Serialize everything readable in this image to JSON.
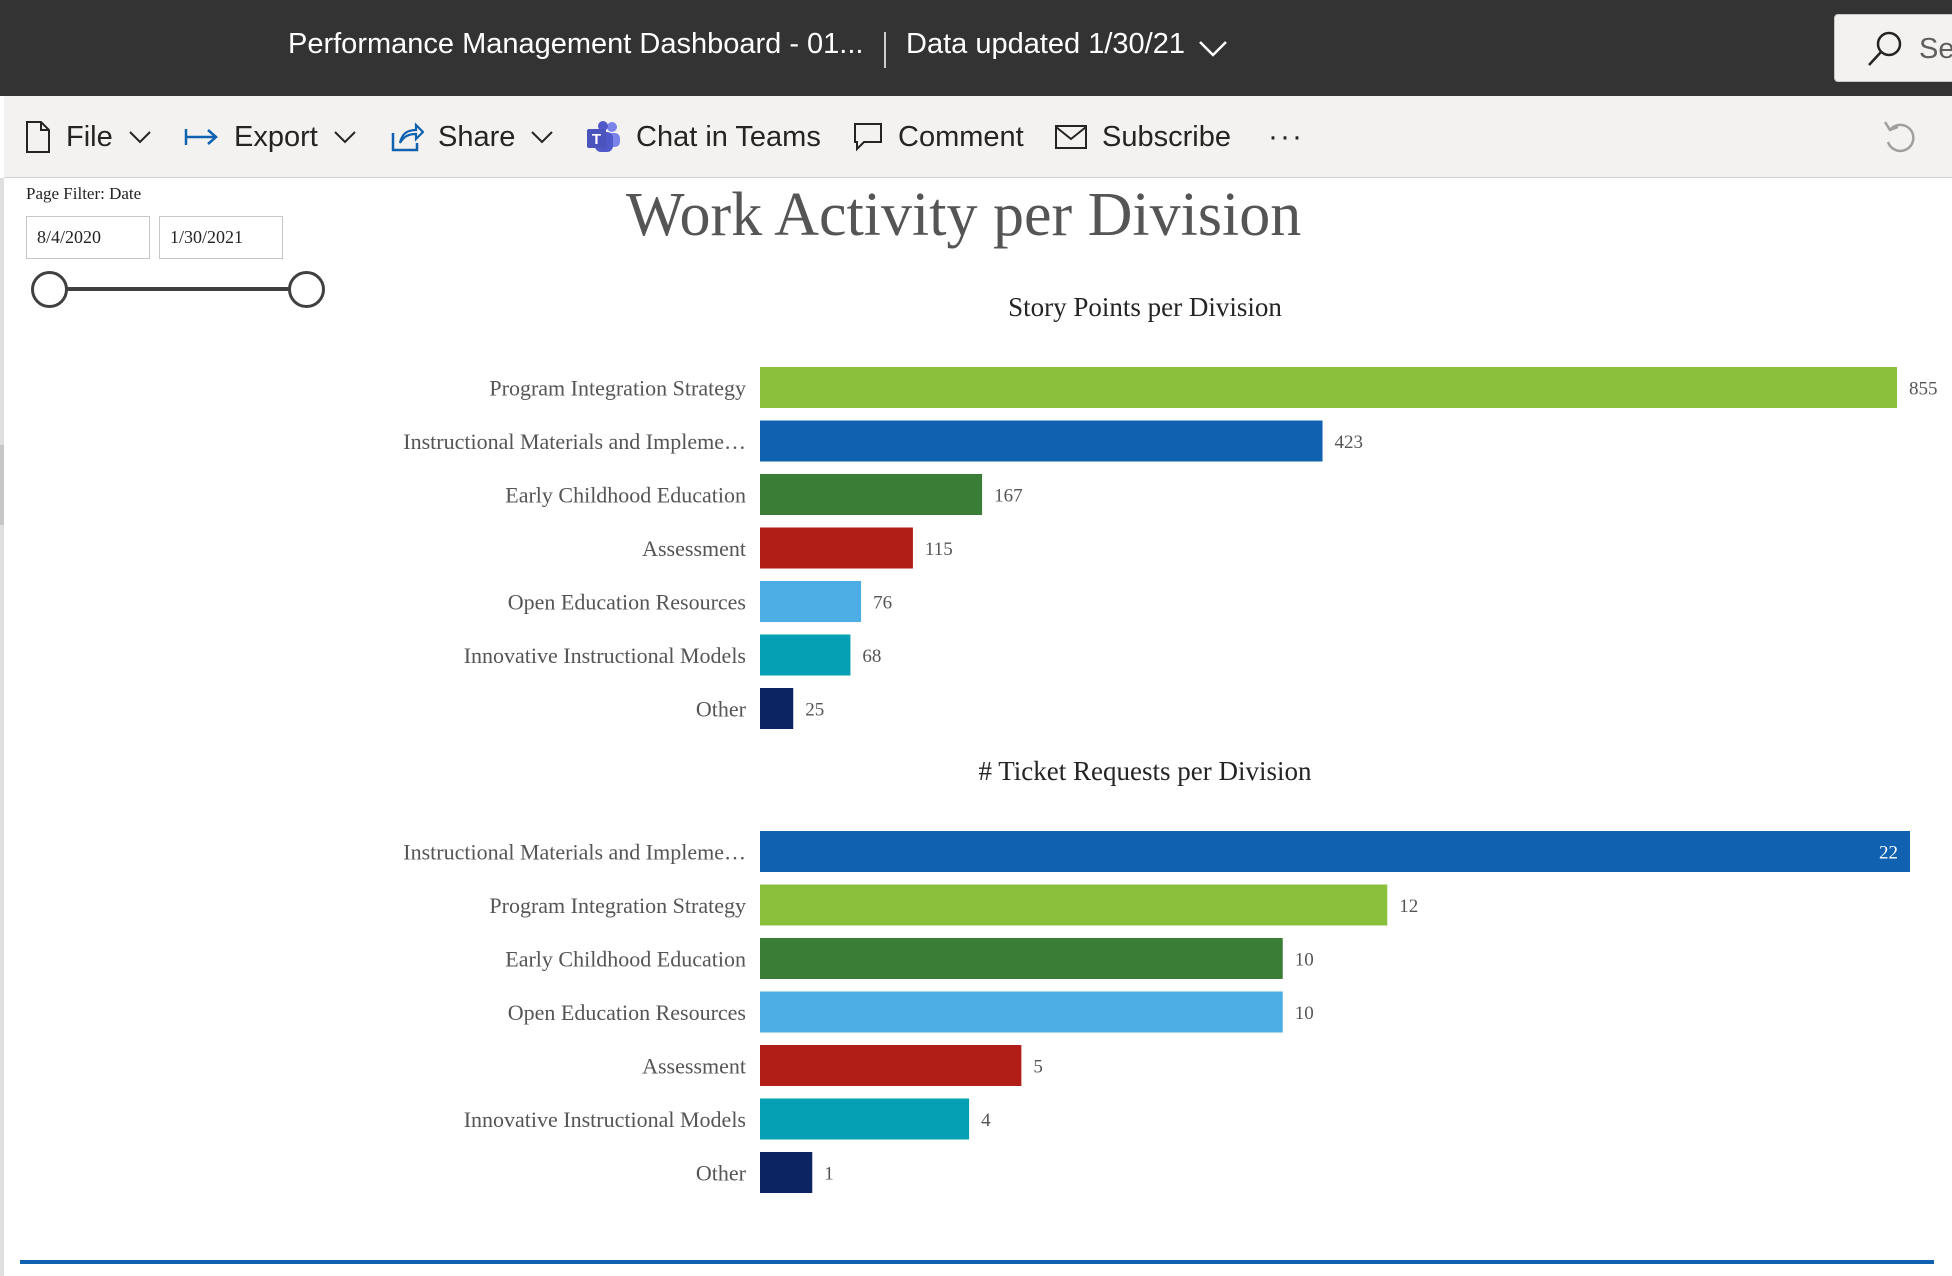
{
  "header": {
    "report_title": "Performance Management Dashboard - 01...",
    "data_updated": "Data updated 1/30/21",
    "search_placeholder": "Se"
  },
  "toolbar": {
    "file": "File",
    "export": "Export",
    "share": "Share",
    "chat_in_teams": "Chat in Teams",
    "comment": "Comment",
    "subscribe": "Subscribe",
    "more": "···"
  },
  "filter": {
    "title": "Page Filter: Date",
    "from": "8/4/2020",
    "to": "1/30/2021"
  },
  "page_title": "Work Activity per Division",
  "colors": {
    "Program Integration Strategy": "#8bc03c",
    "Instructional Materials and Impleme…": "#1061b0",
    "Early Childhood Education": "#3a7d36",
    "Assessment": "#b11e17",
    "Open Education Resources": "#4daee5",
    "Innovative Instructional Models": "#05a0b4",
    "Other": "#0c2461"
  },
  "chart_data": [
    {
      "type": "bar",
      "orientation": "horizontal",
      "title": "Story Points per Division",
      "categories": [
        "Program Integration Strategy",
        "Instructional Materials and Impleme…",
        "Early Childhood Education",
        "Assessment",
        "Open Education Resources",
        "Innovative Instructional Models",
        "Other"
      ],
      "values": [
        855,
        423,
        167,
        115,
        76,
        68,
        25
      ],
      "xlim": [
        0,
        855
      ],
      "grid": false,
      "data_labels": true
    },
    {
      "type": "bar",
      "orientation": "horizontal",
      "title": "# Ticket Requests per Division",
      "categories": [
        "Instructional Materials and Impleme…",
        "Program Integration Strategy",
        "Early Childhood Education",
        "Open Education Resources",
        "Assessment",
        "Innovative Instructional Models",
        "Other"
      ],
      "values": [
        22,
        12,
        10,
        10,
        5,
        4,
        1
      ],
      "xlim": [
        0,
        22
      ],
      "grid": false,
      "data_labels": true
    }
  ]
}
